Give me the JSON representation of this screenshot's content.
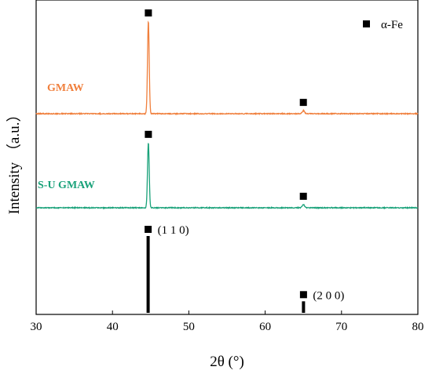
{
  "chart_data": {
    "type": "line",
    "xlabel": "2θ (°)",
    "ylabel": "Intensity （a.u.）",
    "xlim": [
      30,
      80
    ],
    "x_ticks": [
      "30",
      "40",
      "50",
      "60",
      "70",
      "80"
    ],
    "legend": {
      "marker": "square",
      "label": "α-Fe",
      "position": "top-right"
    },
    "series": [
      {
        "name": "GMAW",
        "color": "#f07f3c",
        "peaks": [
          {
            "x": 44.7,
            "y": 1.0,
            "marked": true
          },
          {
            "x": 65.0,
            "y": 0.033,
            "marked": true
          }
        ]
      },
      {
        "name": "S-U GMAW",
        "color": "#1aa27a",
        "peaks": [
          {
            "x": 44.7,
            "y": 0.84,
            "marked": true
          },
          {
            "x": 65.0,
            "y": 0.042,
            "marked": true
          }
        ]
      }
    ],
    "reference": {
      "color": "#000000",
      "lines": [
        {
          "x": 44.67,
          "y": 1.0,
          "label": "(1 1 0)"
        },
        {
          "x": 65.02,
          "y": 0.15,
          "label": "(2 0 0)"
        }
      ]
    }
  }
}
